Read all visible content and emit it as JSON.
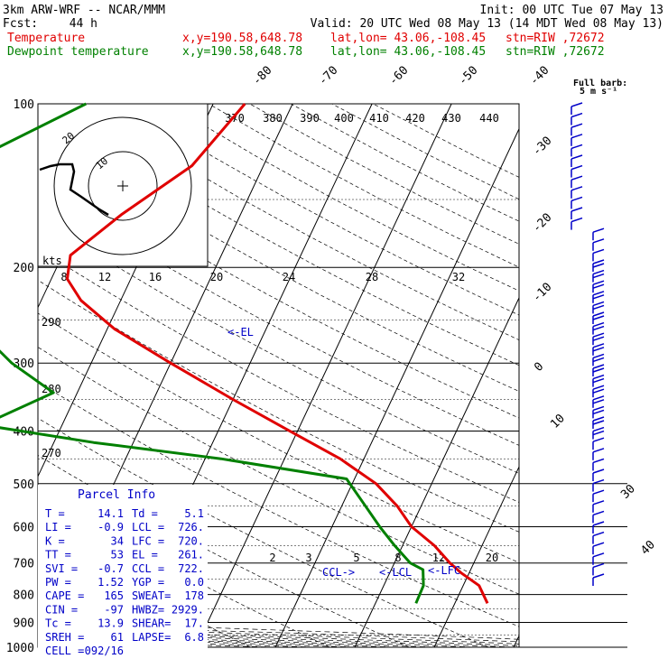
{
  "header": {
    "model": "3km ARW-WRF -- NCAR/MMM",
    "init": "Init: 00 UTC Tue 07 May 13",
    "fcst_label": "Fcst:",
    "fcst_hours": "44 h",
    "valid": "Valid: 20 UTC Wed 08 May 13 (14 MDT Wed 08 May 13)",
    "temp_label": "Temperature",
    "dew_label": "Dewpoint temperature",
    "xy": "x,y=190.58,648.78",
    "latlon": "lat,lon= 43.06,-108.45",
    "stn": "stn=RIW ,72672"
  },
  "barb_legend": {
    "line1": "Full barb:",
    "line2": "5 m s⁻¹"
  },
  "parcel": {
    "title": "Parcel Info",
    "rows": [
      [
        "T  =",
        "14.1",
        "Td =",
        "5.1"
      ],
      [
        "LI =",
        "-0.9",
        "LCL =",
        "726."
      ],
      [
        "K  =",
        "34",
        "LFC =",
        "720."
      ],
      [
        "TT =",
        "53",
        "EL =",
        "261."
      ],
      [
        "SVI =",
        "-0.7",
        "CCL =",
        "722."
      ],
      [
        "PW =",
        "1.52",
        "YGP =",
        "0.0"
      ],
      [
        "CAPE =",
        "165",
        "SWEAT=",
        "178"
      ],
      [
        "CIN =",
        "-97",
        "HWBZ=",
        "2929."
      ],
      [
        "Tc =",
        "13.9",
        "SHEAR=",
        "17."
      ],
      [
        "SREH =",
        "61",
        "LAPSE=",
        "6.8"
      ],
      [
        "CELL =",
        "092/16",
        "",
        ""
      ]
    ]
  },
  "annotations": {
    "el": "<-EL",
    "ccl": "CCL->",
    "lcl": "<-LCL",
    "lfc": "<-LFC"
  },
  "hodograph": {
    "kts_label": "kts",
    "ring_labels": [
      "20",
      "10"
    ]
  },
  "chart_data": {
    "type": "line",
    "title": "",
    "xlabel": "",
    "ylabel": "",
    "pressure_ticks": [
      100,
      200,
      300,
      400,
      500,
      600,
      700,
      800,
      900,
      1000
    ],
    "temperature_ticks": [
      -80,
      -70,
      -60,
      -50,
      -40,
      -30,
      -20,
      -10,
      0,
      10,
      30,
      40
    ],
    "theta_ticks": [
      370,
      380,
      390,
      400,
      410,
      420,
      430,
      440
    ],
    "theta_e_ticks": [
      290,
      280,
      270
    ],
    "mixing_ratio_upper_ticks": [
      8,
      12,
      16,
      20,
      24,
      28,
      32
    ],
    "mixing_ratio_lower_ticks": [
      2,
      3,
      5,
      8,
      12,
      20
    ],
    "series": [
      {
        "name": "Temperature",
        "color": "#e00000",
        "points": [
          [
            100,
            -46
          ],
          [
            130,
            -49
          ],
          [
            160,
            -55
          ],
          [
            190,
            -59
          ],
          [
            210,
            -58
          ],
          [
            230,
            -55
          ],
          [
            260,
            -49
          ],
          [
            300,
            -40
          ],
          [
            350,
            -30
          ],
          [
            400,
            -21
          ],
          [
            450,
            -13
          ],
          [
            500,
            -7
          ],
          [
            550,
            -3
          ],
          [
            600,
            0
          ],
          [
            650,
            4
          ],
          [
            700,
            7
          ],
          [
            730,
            9
          ],
          [
            770,
            12
          ],
          [
            830,
            14.1
          ]
        ]
      },
      {
        "name": "Dewpoint temperature",
        "color": "#008000",
        "points": [
          [
            100,
            -66
          ],
          [
            130,
            -78
          ],
          [
            150,
            -80
          ],
          [
            170,
            -76
          ],
          [
            200,
            -75
          ],
          [
            250,
            -68
          ],
          [
            300,
            -60
          ],
          [
            340,
            -53
          ],
          [
            390,
            -60
          ],
          [
            420,
            -45
          ],
          [
            450,
            -28
          ],
          [
            490,
            -11
          ],
          [
            550,
            -7
          ],
          [
            600,
            -4
          ],
          [
            650,
            -1
          ],
          [
            700,
            2
          ],
          [
            720,
            4
          ],
          [
            770,
            5
          ],
          [
            830,
            5.1
          ]
        ]
      }
    ],
    "ylim": [
      100,
      1000
    ],
    "log_pressure": true
  },
  "colors": {
    "temperature": "#e00000",
    "dewpoint": "#008000",
    "parcel": "#0000c8",
    "barbs": "#0000c8"
  }
}
